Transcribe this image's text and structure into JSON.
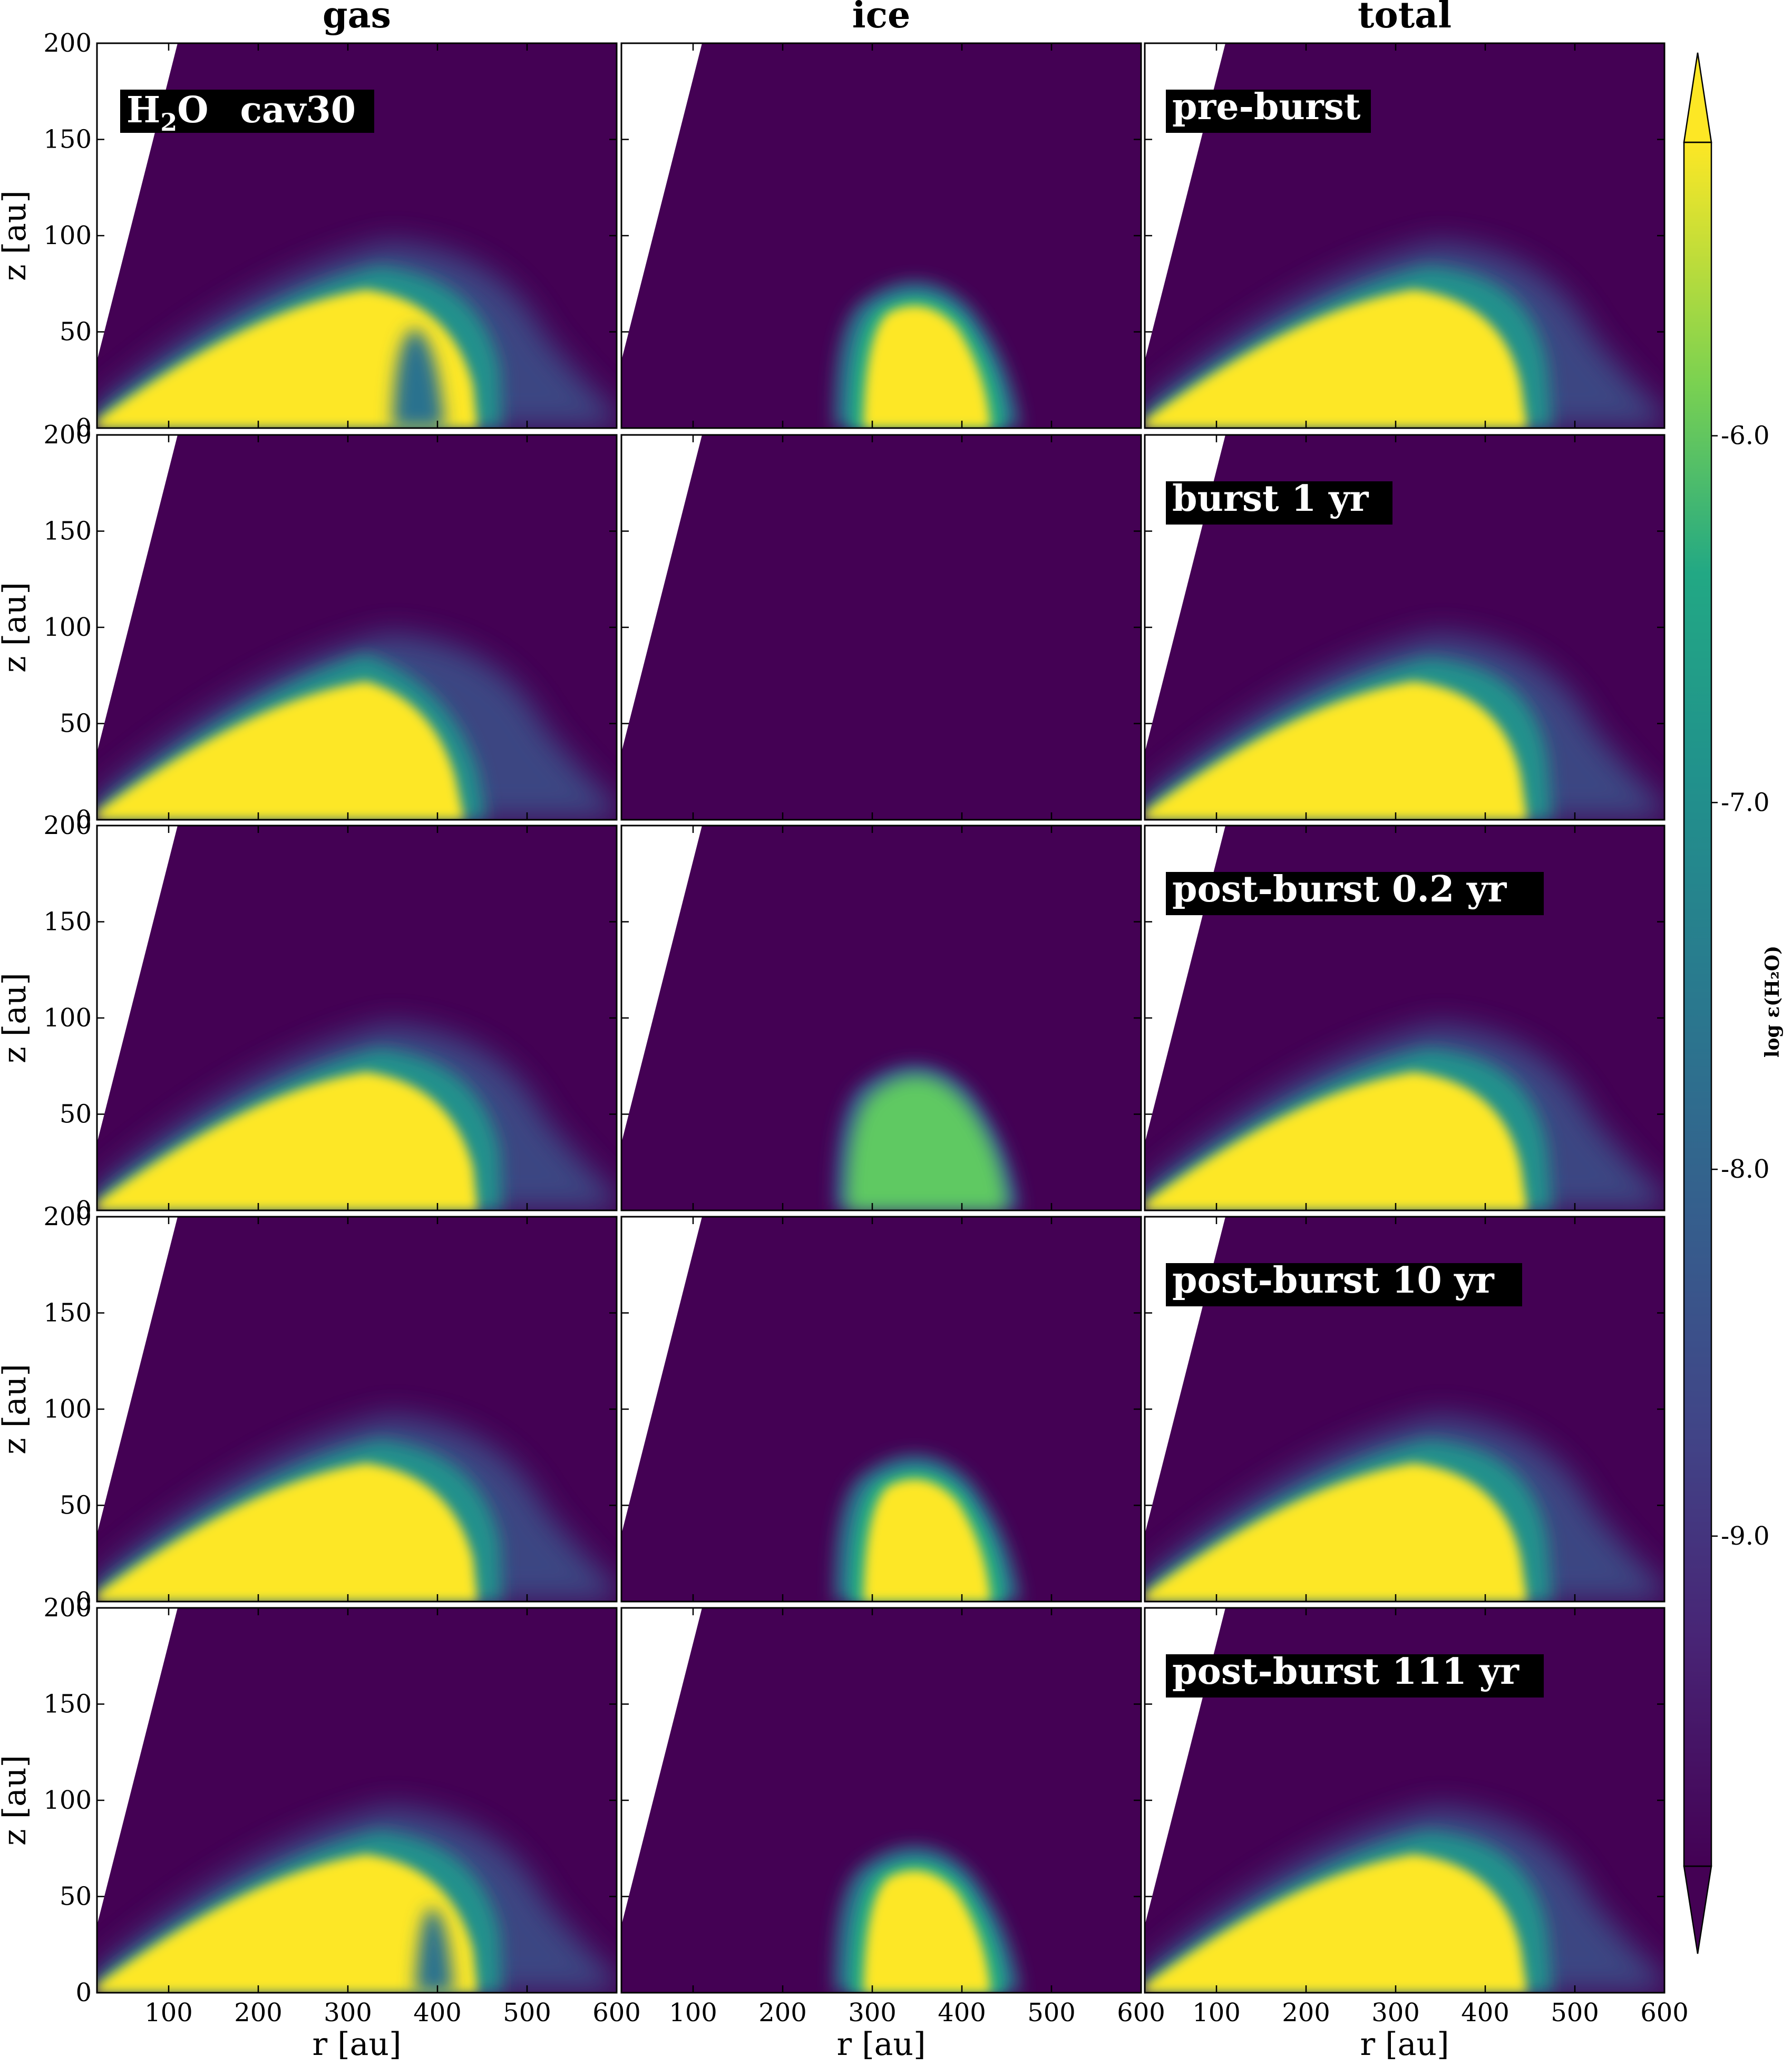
{
  "chart_data": {
    "type": "heatmap",
    "layout": {
      "rows": 5,
      "cols": 3
    },
    "columns": [
      "gas",
      "ice",
      "total"
    ],
    "species_label": {
      "molecule_main": "H",
      "molecule_sub": "2",
      "molecule_rest": "O",
      "model": "cav30"
    },
    "row_labels": [
      "pre-burst",
      "burst 1 yr",
      "post-burst 0.2 yr",
      "post-burst 10 yr",
      "post-burst 111 yr"
    ],
    "xlabel": "r [au]",
    "ylabel": "z [au]",
    "xlim": [
      20,
      600
    ],
    "ylim": [
      0,
      200
    ],
    "xticks": [
      100,
      200,
      300,
      400,
      500,
      600
    ],
    "xtick_labels_last": [
      "100",
      "200",
      "300",
      "400",
      "500",
      "600"
    ],
    "xtick_labels_other": [
      "100",
      "200",
      "300",
      "400",
      "500",
      "600"
    ],
    "yticks": [
      0,
      50,
      100,
      150,
      200
    ],
    "ytick_labels": [
      "0",
      "50",
      "100",
      "150",
      "200"
    ],
    "cavity_edge": {
      "r_bottom": 20,
      "z_bottom": 35,
      "r_top": 110,
      "z_top": 200
    },
    "colorbar": {
      "label": "log ε(H₂O)",
      "min": -9.9,
      "max": -5.2,
      "ticks": [
        -6.0,
        -7.0,
        -8.0,
        -9.0
      ],
      "tick_labels": [
        "-6.0",
        "-7.0",
        "-8.0",
        "-9.0"
      ],
      "extend": "both",
      "colormap": "viridis"
    },
    "colors": {
      "background_low": "#440154",
      "saturated_high": "#fde725",
      "mid_green": "#5ec962",
      "teal": "#21918c",
      "label_box": "#000000",
      "label_text": "#ffffff"
    },
    "panels": [
      {
        "row": 0,
        "col": 0,
        "type": "gas",
        "state": "pre"
      },
      {
        "row": 0,
        "col": 1,
        "type": "ice",
        "state": "pre"
      },
      {
        "row": 0,
        "col": 2,
        "type": "total",
        "state": "pre"
      },
      {
        "row": 1,
        "col": 0,
        "type": "gas",
        "state": "burst"
      },
      {
        "row": 1,
        "col": 1,
        "type": "ice",
        "state": "burst"
      },
      {
        "row": 1,
        "col": 2,
        "type": "total",
        "state": "burst"
      },
      {
        "row": 2,
        "col": 0,
        "type": "gas",
        "state": "post02"
      },
      {
        "row": 2,
        "col": 1,
        "type": "ice",
        "state": "post02"
      },
      {
        "row": 2,
        "col": 2,
        "type": "total",
        "state": "post02"
      },
      {
        "row": 3,
        "col": 0,
        "type": "gas",
        "state": "post10"
      },
      {
        "row": 3,
        "col": 1,
        "type": "ice",
        "state": "post10"
      },
      {
        "row": 3,
        "col": 2,
        "type": "total",
        "state": "post10"
      },
      {
        "row": 4,
        "col": 0,
        "type": "gas",
        "state": "post111"
      },
      {
        "row": 4,
        "col": 1,
        "type": "ice",
        "state": "post111"
      },
      {
        "row": 4,
        "col": 2,
        "type": "total",
        "state": "post111"
      }
    ]
  }
}
